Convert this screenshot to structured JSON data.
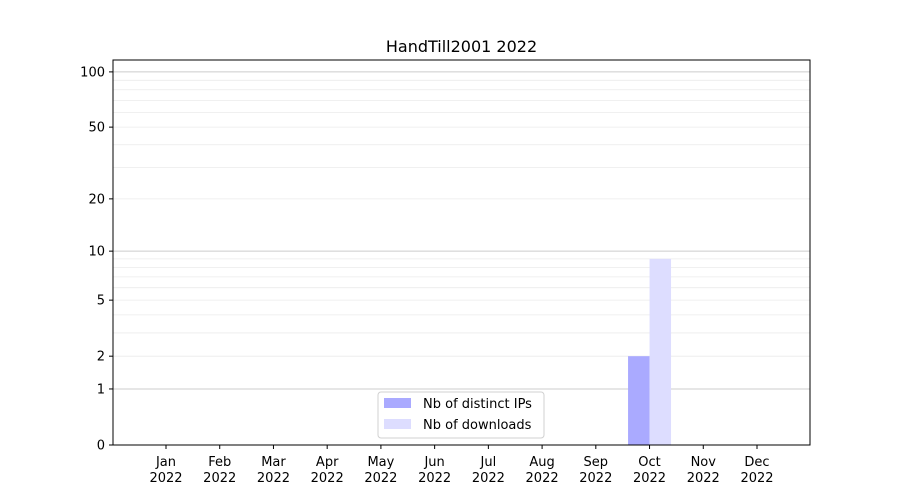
{
  "chart_data": {
    "type": "bar",
    "title": "HandTill2001 2022",
    "xlabel": "",
    "ylabel": "",
    "yscale": "symlog",
    "ylim": [
      0,
      116
    ],
    "yticks": [
      0,
      1,
      2,
      5,
      10,
      20,
      50,
      100
    ],
    "grid": true,
    "legend_position": "bottom-center",
    "categories": [
      "Jan\n2022",
      "Feb\n2022",
      "Mar\n2022",
      "Apr\n2022",
      "May\n2022",
      "Jun\n2022",
      "Jul\n2022",
      "Aug\n2022",
      "Sep\n2022",
      "Oct\n2022",
      "Nov\n2022",
      "Dec\n2022"
    ],
    "series": [
      {
        "name": "Nb of distinct IPs",
        "color": "#aaaaff",
        "values": [
          0,
          0,
          0,
          0,
          0,
          0,
          0,
          0,
          0,
          2,
          0,
          0
        ]
      },
      {
        "name": "Nb of downloads",
        "color": "#ddddff",
        "values": [
          0,
          0,
          0,
          0,
          0,
          0,
          0,
          0,
          0,
          9,
          0,
          0
        ]
      }
    ]
  }
}
